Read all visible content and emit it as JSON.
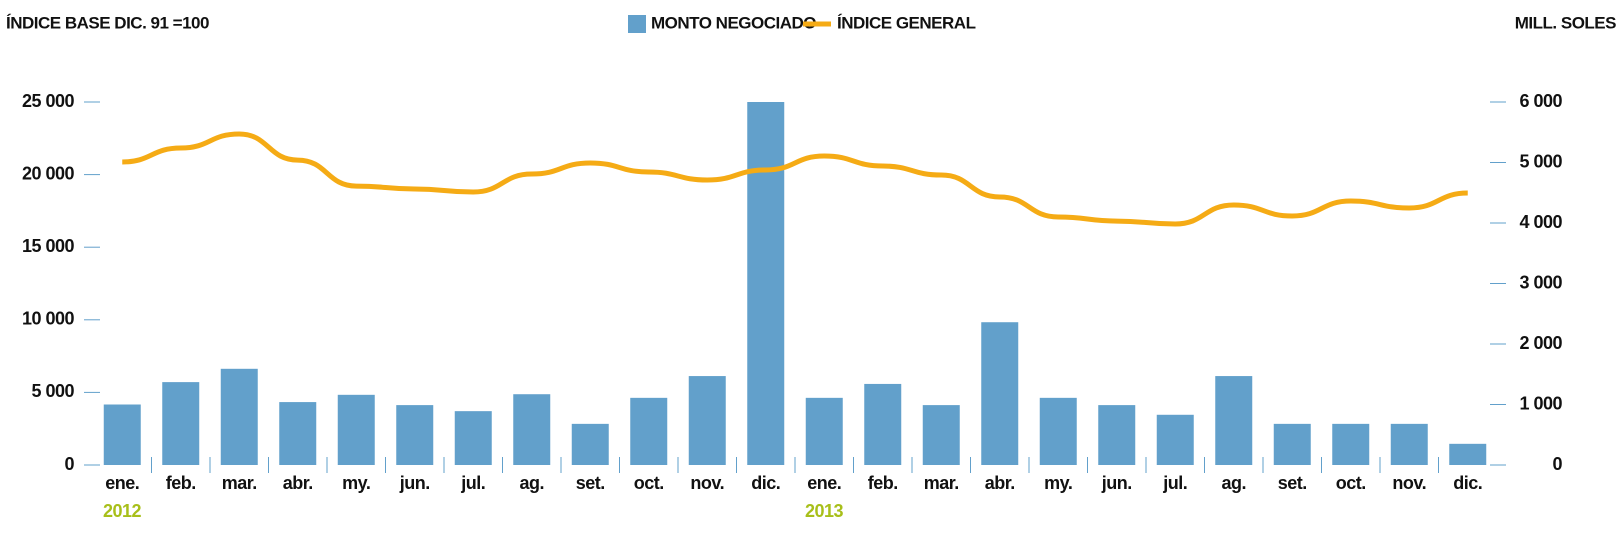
{
  "chart_data": {
    "type": "bar_line",
    "y_axis_label": "ÍNDICE BASE DIC. 91 =100",
    "y2_axis_label": "MILL. SOLES",
    "categories": [
      "ene.",
      "feb.",
      "mar.",
      "abr.",
      "my.",
      "jun.",
      "jul.",
      "ag.",
      "set.",
      "oct.",
      "nov.",
      "dic.",
      "ene.",
      "feb.",
      "mar.",
      "abr.",
      "my.",
      "jun.",
      "jul.",
      "ag.",
      "set.",
      "oct.",
      "nov.",
      "dic."
    ],
    "year_labels": [
      "2012",
      "2013"
    ],
    "series": [
      {
        "name": "MONTO NEGOCIADO",
        "type": "bar",
        "axis": "y2",
        "color": "#62a0cb",
        "values": [
          1000,
          1370,
          1590,
          1040,
          1160,
          990,
          890,
          1170,
          680,
          1110,
          1470,
          6000,
          1110,
          1340,
          990,
          2360,
          1110,
          990,
          830,
          1470,
          680,
          680,
          680,
          350
        ]
      },
      {
        "name": "ÍNDICE GENERAL",
        "type": "line",
        "axis": "y",
        "color": "#f5ab15",
        "values": [
          20870,
          21830,
          22800,
          21000,
          19210,
          19010,
          18800,
          20040,
          20800,
          20180,
          19630,
          20320,
          21280,
          20590,
          19970,
          18460,
          17080,
          16800,
          16600,
          17910,
          17150,
          18180,
          17700,
          18730
        ]
      }
    ],
    "ylim": [
      0,
      25000
    ],
    "yticks": [
      0,
      {
        "value": 5000,
        "label": "5 000"
      },
      {
        "value": 10000,
        "label": "10 000"
      },
      {
        "value": 15000,
        "label": "15 000"
      },
      {
        "value": 20000,
        "label": "20 000"
      },
      {
        "value": 25000,
        "label": "25 000"
      }
    ],
    "y2lim": [
      0,
      6000
    ],
    "y2ticks": [
      0,
      {
        "value": 1000,
        "label": "1 000"
      },
      {
        "value": 2000,
        "label": "2 000"
      },
      {
        "value": 3000,
        "label": "3 000"
      },
      {
        "value": 4000,
        "label": "4 000"
      },
      {
        "value": 5000,
        "label": "5 000"
      },
      {
        "value": 6000,
        "label": "6 000"
      }
    ],
    "year_color": "#a8bf1a",
    "tick_color": "#62a0cb"
  }
}
